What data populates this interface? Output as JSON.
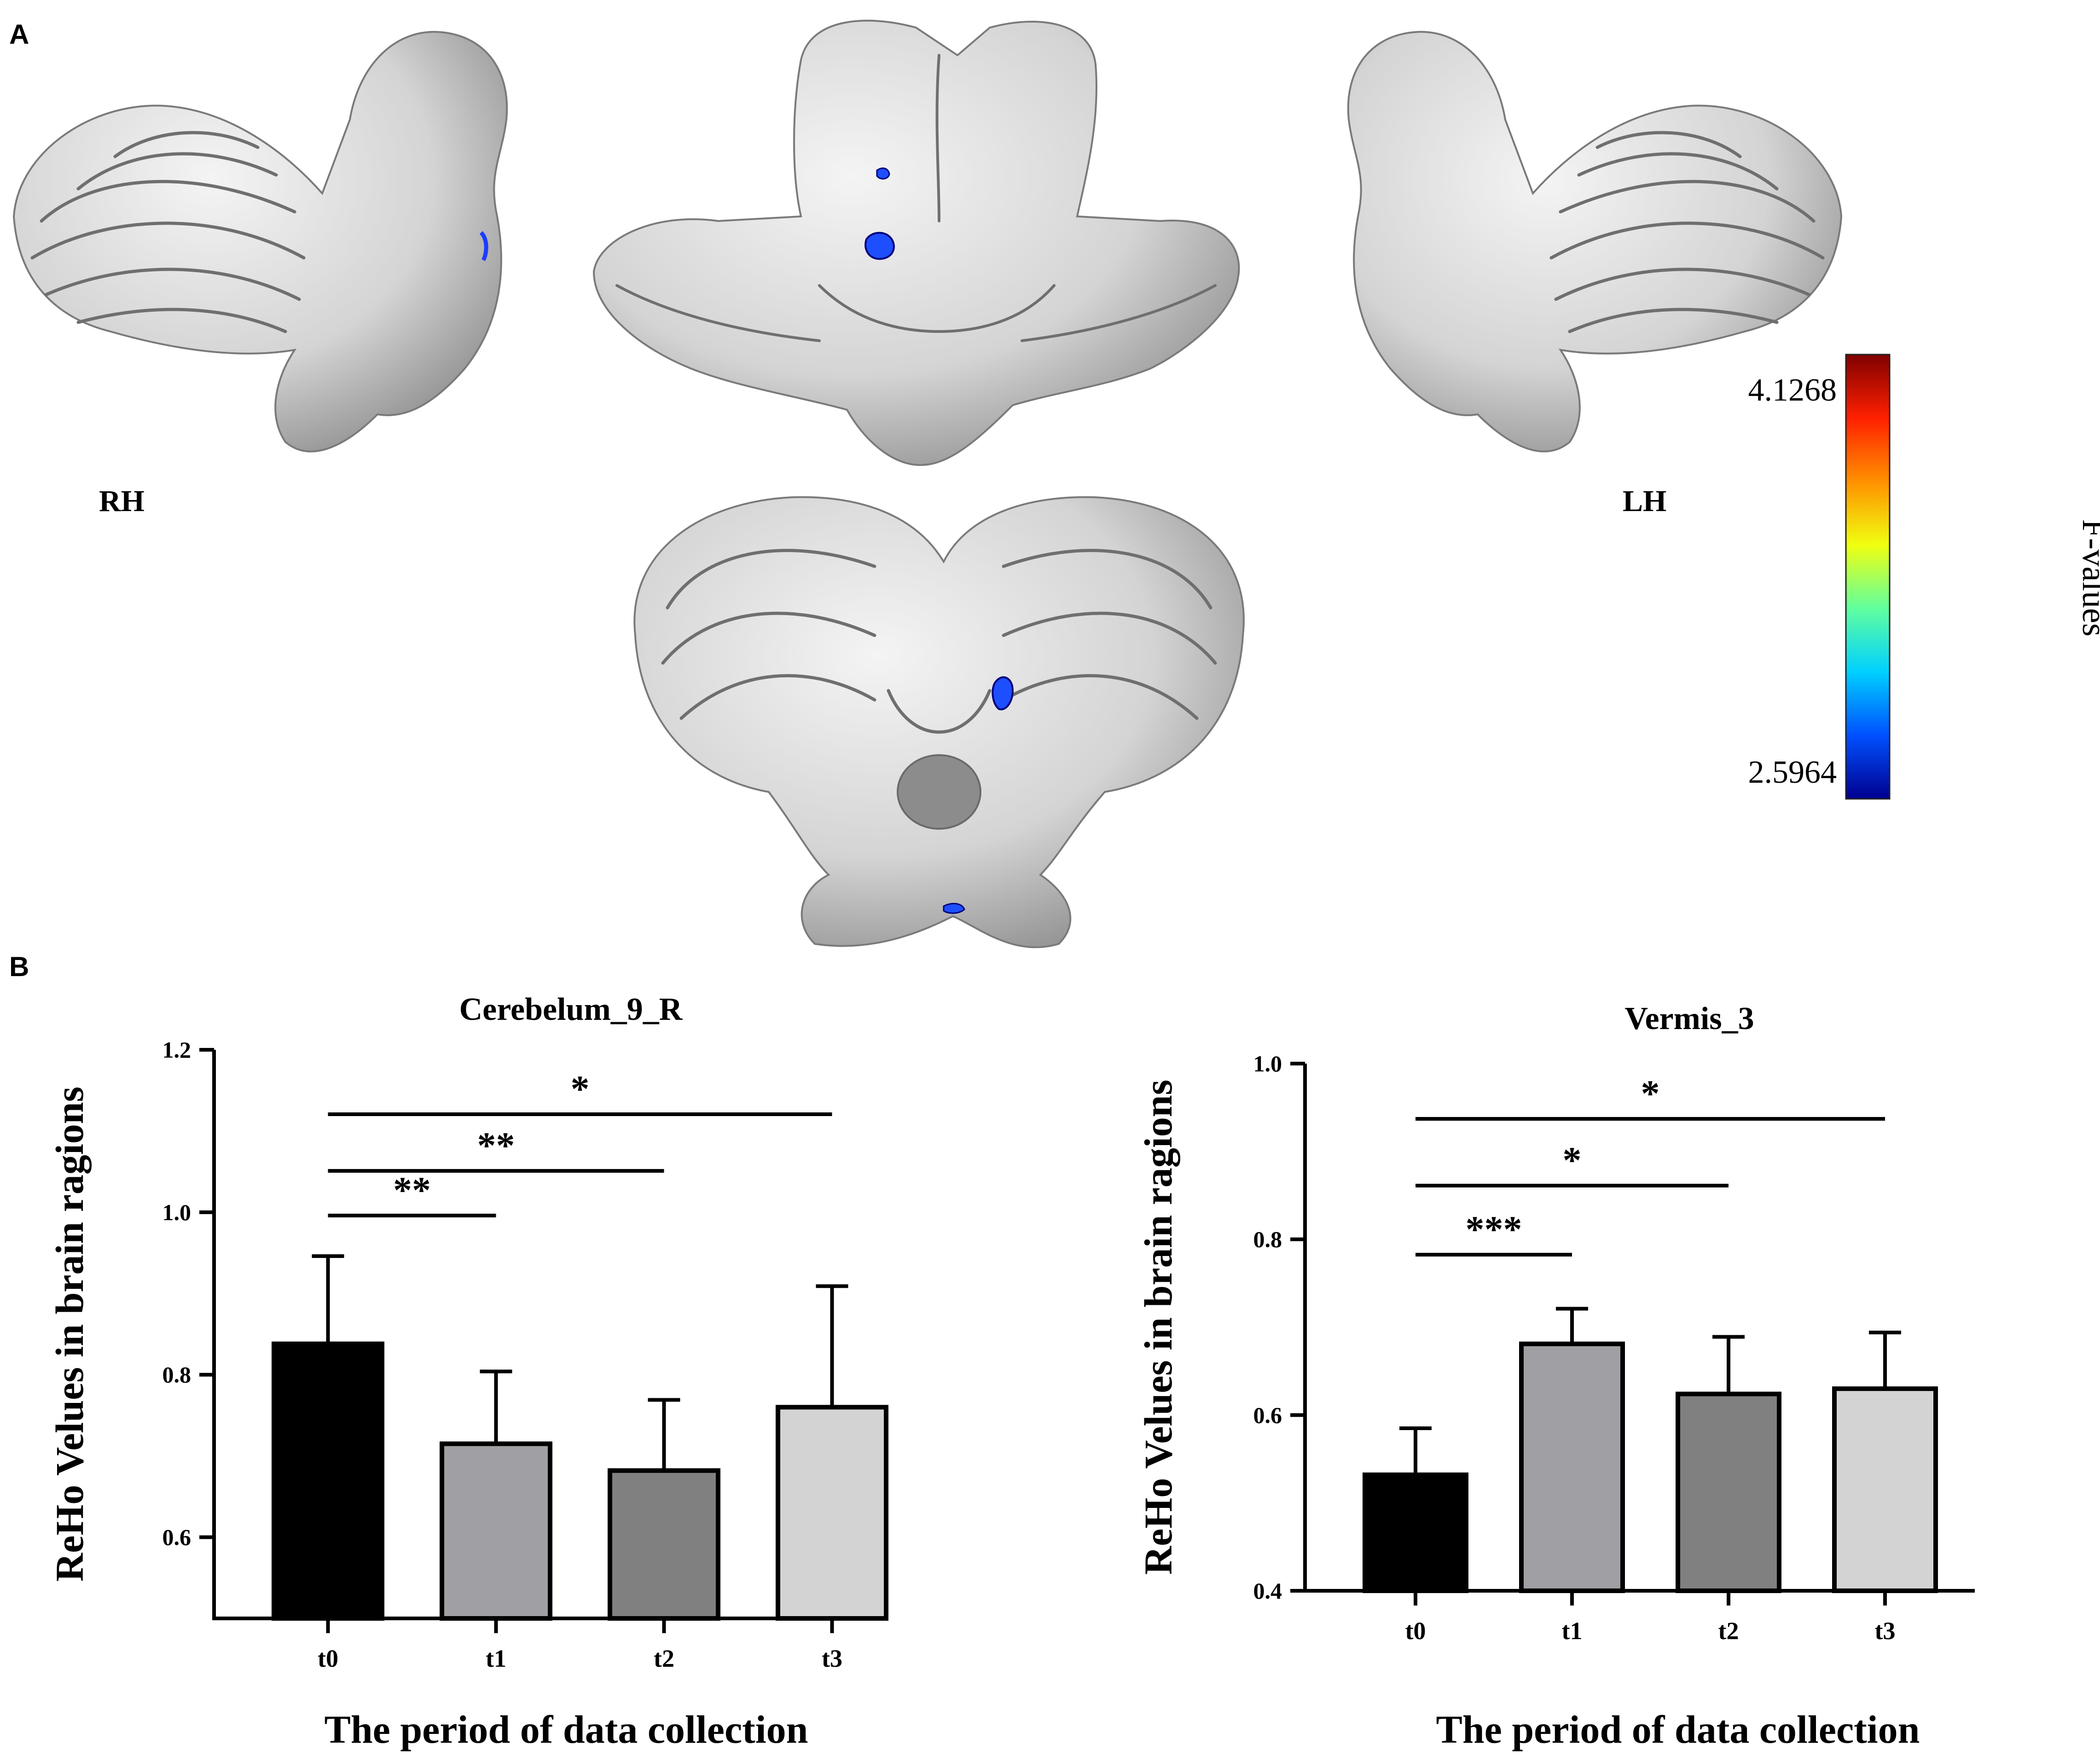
{
  "panels": {
    "a_letter": "A",
    "b_letter": "B"
  },
  "brain_views": {
    "left_label": "RH",
    "right_label": "LH"
  },
  "colorbar": {
    "title": "F-values",
    "max_label": "4.1268",
    "min_label": "2.5964",
    "colors": [
      "#00008f",
      "#0050ff",
      "#00d0ff",
      "#60ff9f",
      "#f0ff10",
      "#ff9000",
      "#ff2000",
      "#800000"
    ]
  },
  "bar_colors": [
    "#000000",
    "#a0a0a4",
    "#808080",
    "#d3d3d3"
  ],
  "chart_data": [
    {
      "type": "bar",
      "title": "Cerebelum_9_R",
      "xlabel": "The period of data collection",
      "ylabel": "ReHo Velues in brain ragions",
      "categories": [
        "t0",
        "t1",
        "t2",
        "t3"
      ],
      "values": [
        0.838,
        0.715,
        0.682,
        0.76
      ],
      "errors": [
        0.108,
        0.089,
        0.087,
        0.149
      ],
      "ylim": [
        0.5,
        1.2
      ],
      "yticks": [
        0.6,
        0.8,
        1.0,
        1.2
      ],
      "ytick_labels": [
        "0.6",
        "0.8",
        "1.0",
        "1.2"
      ],
      "significance": [
        {
          "from": 0,
          "to": 1,
          "label": "**"
        },
        {
          "from": 0,
          "to": 2,
          "label": "**"
        },
        {
          "from": 0,
          "to": 3,
          "label": "*"
        }
      ]
    },
    {
      "type": "bar",
      "title": "Vermis_3",
      "xlabel": "The period of data collection",
      "ylabel": "ReHo Velues in brain ragions",
      "categories": [
        "t0",
        "t1",
        "t2",
        "t3"
      ],
      "values": [
        0.532,
        0.681,
        0.624,
        0.63
      ],
      "errors": [
        0.053,
        0.04,
        0.065,
        0.064
      ],
      "ylim": [
        0.4,
        1.0
      ],
      "yticks": [
        0.4,
        0.6,
        0.8,
        1.0
      ],
      "ytick_labels": [
        "0.4",
        "0.6",
        "0.8",
        "1.0"
      ],
      "significance": [
        {
          "from": 0,
          "to": 1,
          "label": "***"
        },
        {
          "from": 0,
          "to": 2,
          "label": "*"
        },
        {
          "from": 0,
          "to": 3,
          "label": "*"
        }
      ]
    }
  ]
}
